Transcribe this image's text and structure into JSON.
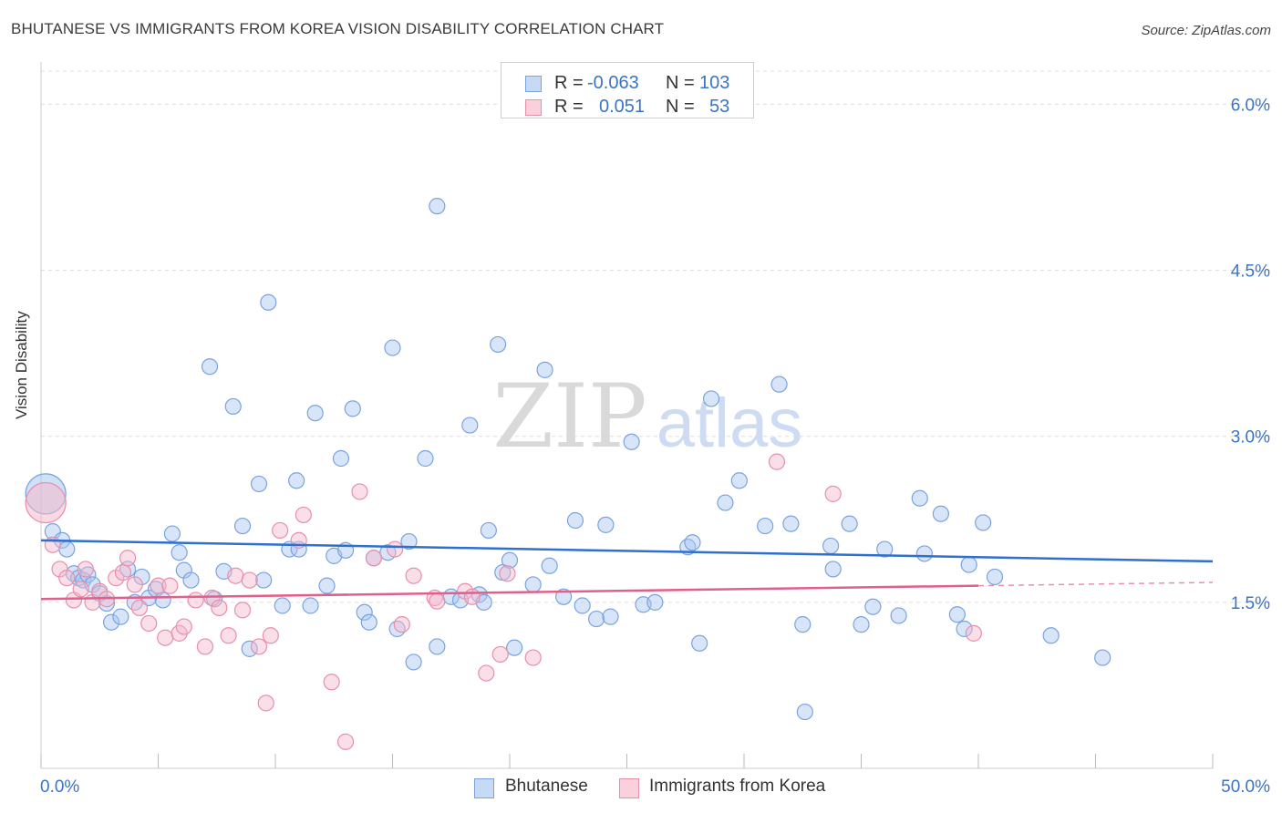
{
  "title": "BHUTANESE VS IMMIGRANTS FROM KOREA VISION DISABILITY CORRELATION CHART",
  "source": "Source: ZipAtlas.com",
  "watermark": {
    "zip": "ZIP",
    "atlas": "atlas"
  },
  "stats": [
    {
      "r_label": "R =",
      "r": "-0.063",
      "n_label": "N =",
      "n": "103",
      "color": "#a9c6f1"
    },
    {
      "r_label": "R =",
      "r": "0.051",
      "n_label": "N =",
      "n": "53",
      "color": "#f5b9cb"
    }
  ],
  "chart_data": {
    "type": "scatter",
    "title": "BHUTANESE VS IMMIGRANTS FROM KOREA VISION DISABILITY CORRELATION CHART",
    "xlabel": "",
    "ylabel": "Vision Disability",
    "xlim": [
      0,
      50
    ],
    "ylim": [
      0,
      6.3
    ],
    "x_tick_labels": [
      "0.0%",
      "50.0%"
    ],
    "y_ticks": [
      1.5,
      3.0,
      4.5,
      6.0
    ],
    "y_tick_labels": [
      "1.5%",
      "3.0%",
      "4.5%",
      "6.0%"
    ],
    "grid": true,
    "legend_position": "bottom-center",
    "series": [
      {
        "name": "Bhutanese",
        "color": "#a9c6f1",
        "edge_color": "#7aa3de",
        "trend_color": "#2f6fcd",
        "trend": {
          "x0": 0,
          "y0": 2.06,
          "x1": 50,
          "y1": 1.87
        },
        "points": [
          [
            0.2,
            2.48
          ],
          [
            0.5,
            2.14
          ],
          [
            0.9,
            2.06
          ],
          [
            1.1,
            1.98
          ],
          [
            1.4,
            1.76
          ],
          [
            1.6,
            1.72
          ],
          [
            1.8,
            1.7
          ],
          [
            2.0,
            1.75
          ],
          [
            2.2,
            1.66
          ],
          [
            2.5,
            1.58
          ],
          [
            2.8,
            1.49
          ],
          [
            3.0,
            1.32
          ],
          [
            3.4,
            1.37
          ],
          [
            3.7,
            1.8
          ],
          [
            4.0,
            1.5
          ],
          [
            4.3,
            1.73
          ],
          [
            4.6,
            1.54
          ],
          [
            4.9,
            1.62
          ],
          [
            5.2,
            1.52
          ],
          [
            5.6,
            2.12
          ],
          [
            5.9,
            1.95
          ],
          [
            6.1,
            1.79
          ],
          [
            6.4,
            1.7
          ],
          [
            7.2,
            3.63
          ],
          [
            7.4,
            1.53
          ],
          [
            7.8,
            1.78
          ],
          [
            8.2,
            3.27
          ],
          [
            8.6,
            2.19
          ],
          [
            8.9,
            1.08
          ],
          [
            9.3,
            2.57
          ],
          [
            9.5,
            1.7
          ],
          [
            9.7,
            4.21
          ],
          [
            10.3,
            1.47
          ],
          [
            10.6,
            1.98
          ],
          [
            10.9,
            2.6
          ],
          [
            11.0,
            1.98
          ],
          [
            11.5,
            1.47
          ],
          [
            11.7,
            3.21
          ],
          [
            12.2,
            1.65
          ],
          [
            12.5,
            1.92
          ],
          [
            12.8,
            2.8
          ],
          [
            13.0,
            1.97
          ],
          [
            13.3,
            3.25
          ],
          [
            13.8,
            1.41
          ],
          [
            14.0,
            1.32
          ],
          [
            14.2,
            1.9
          ],
          [
            14.8,
            1.95
          ],
          [
            15.0,
            3.8
          ],
          [
            15.2,
            1.26
          ],
          [
            15.7,
            2.05
          ],
          [
            15.9,
            0.96
          ],
          [
            16.4,
            2.8
          ],
          [
            16.9,
            1.1
          ],
          [
            16.9,
            5.08
          ],
          [
            17.5,
            1.55
          ],
          [
            17.9,
            1.52
          ],
          [
            18.3,
            3.1
          ],
          [
            18.7,
            1.57
          ],
          [
            18.9,
            1.5
          ],
          [
            19.1,
            2.15
          ],
          [
            19.5,
            3.83
          ],
          [
            19.7,
            1.77
          ],
          [
            20.0,
            1.88
          ],
          [
            20.2,
            1.09
          ],
          [
            21.0,
            1.66
          ],
          [
            21.5,
            3.6
          ],
          [
            21.7,
            1.83
          ],
          [
            22.3,
            1.55
          ],
          [
            22.8,
            2.24
          ],
          [
            23.1,
            1.47
          ],
          [
            23.7,
            1.35
          ],
          [
            24.1,
            2.2
          ],
          [
            24.3,
            1.37
          ],
          [
            25.2,
            2.95
          ],
          [
            25.7,
            1.48
          ],
          [
            26.2,
            1.5
          ],
          [
            27.6,
            2.0
          ],
          [
            27.8,
            2.04
          ],
          [
            28.1,
            1.13
          ],
          [
            28.6,
            3.34
          ],
          [
            29.2,
            2.4
          ],
          [
            29.8,
            2.6
          ],
          [
            30.9,
            2.19
          ],
          [
            31.5,
            3.47
          ],
          [
            32.0,
            2.21
          ],
          [
            32.5,
            1.3
          ],
          [
            32.6,
            0.51
          ],
          [
            33.7,
            2.01
          ],
          [
            33.8,
            1.8
          ],
          [
            34.5,
            2.21
          ],
          [
            35.0,
            1.3
          ],
          [
            35.5,
            1.46
          ],
          [
            36.0,
            1.98
          ],
          [
            36.6,
            1.38
          ],
          [
            37.5,
            2.44
          ],
          [
            37.7,
            1.94
          ],
          [
            38.4,
            2.3
          ],
          [
            39.1,
            1.39
          ],
          [
            39.4,
            1.26
          ],
          [
            39.6,
            1.84
          ],
          [
            40.2,
            2.22
          ],
          [
            40.7,
            1.73
          ],
          [
            43.1,
            1.2
          ],
          [
            45.3,
            1.0
          ]
        ]
      },
      {
        "name": "Immigrants from Korea",
        "color": "#f5b9cb",
        "edge_color": "#e88fab",
        "trend_color": "#e0608c",
        "trend": {
          "x0": 0,
          "y0": 1.53,
          "x1": 40,
          "y1": 1.65
        },
        "trend_ext": {
          "x0": 40,
          "y0": 1.65,
          "x1": 50,
          "y1": 1.68
        },
        "points": [
          [
            0.2,
            2.4
          ],
          [
            0.5,
            2.02
          ],
          [
            0.8,
            1.8
          ],
          [
            1.1,
            1.72
          ],
          [
            1.4,
            1.52
          ],
          [
            1.7,
            1.62
          ],
          [
            1.9,
            1.8
          ],
          [
            2.2,
            1.5
          ],
          [
            2.5,
            1.6
          ],
          [
            2.8,
            1.53
          ],
          [
            3.2,
            1.72
          ],
          [
            3.5,
            1.77
          ],
          [
            3.7,
            1.9
          ],
          [
            4.0,
            1.66
          ],
          [
            4.2,
            1.45
          ],
          [
            4.6,
            1.31
          ],
          [
            5.0,
            1.65
          ],
          [
            5.3,
            1.18
          ],
          [
            5.5,
            1.65
          ],
          [
            5.9,
            1.22
          ],
          [
            6.1,
            1.28
          ],
          [
            6.6,
            1.52
          ],
          [
            7.0,
            1.1
          ],
          [
            7.3,
            1.54
          ],
          [
            7.6,
            1.45
          ],
          [
            8.0,
            1.2
          ],
          [
            8.3,
            1.74
          ],
          [
            8.6,
            1.43
          ],
          [
            8.9,
            1.7
          ],
          [
            9.3,
            1.1
          ],
          [
            9.6,
            0.59
          ],
          [
            9.8,
            1.2
          ],
          [
            10.2,
            2.15
          ],
          [
            11.0,
            2.06
          ],
          [
            11.2,
            2.29
          ],
          [
            12.4,
            0.78
          ],
          [
            13.0,
            0.24
          ],
          [
            13.6,
            2.5
          ],
          [
            14.2,
            1.9
          ],
          [
            15.1,
            1.98
          ],
          [
            15.4,
            1.3
          ],
          [
            15.9,
            1.74
          ],
          [
            16.8,
            1.54
          ],
          [
            16.9,
            1.51
          ],
          [
            18.1,
            1.6
          ],
          [
            18.4,
            1.55
          ],
          [
            19.0,
            0.86
          ],
          [
            19.6,
            1.03
          ],
          [
            19.9,
            1.76
          ],
          [
            21.0,
            1.0
          ],
          [
            31.4,
            2.77
          ],
          [
            33.8,
            2.48
          ],
          [
            39.8,
            1.22
          ]
        ]
      }
    ]
  }
}
